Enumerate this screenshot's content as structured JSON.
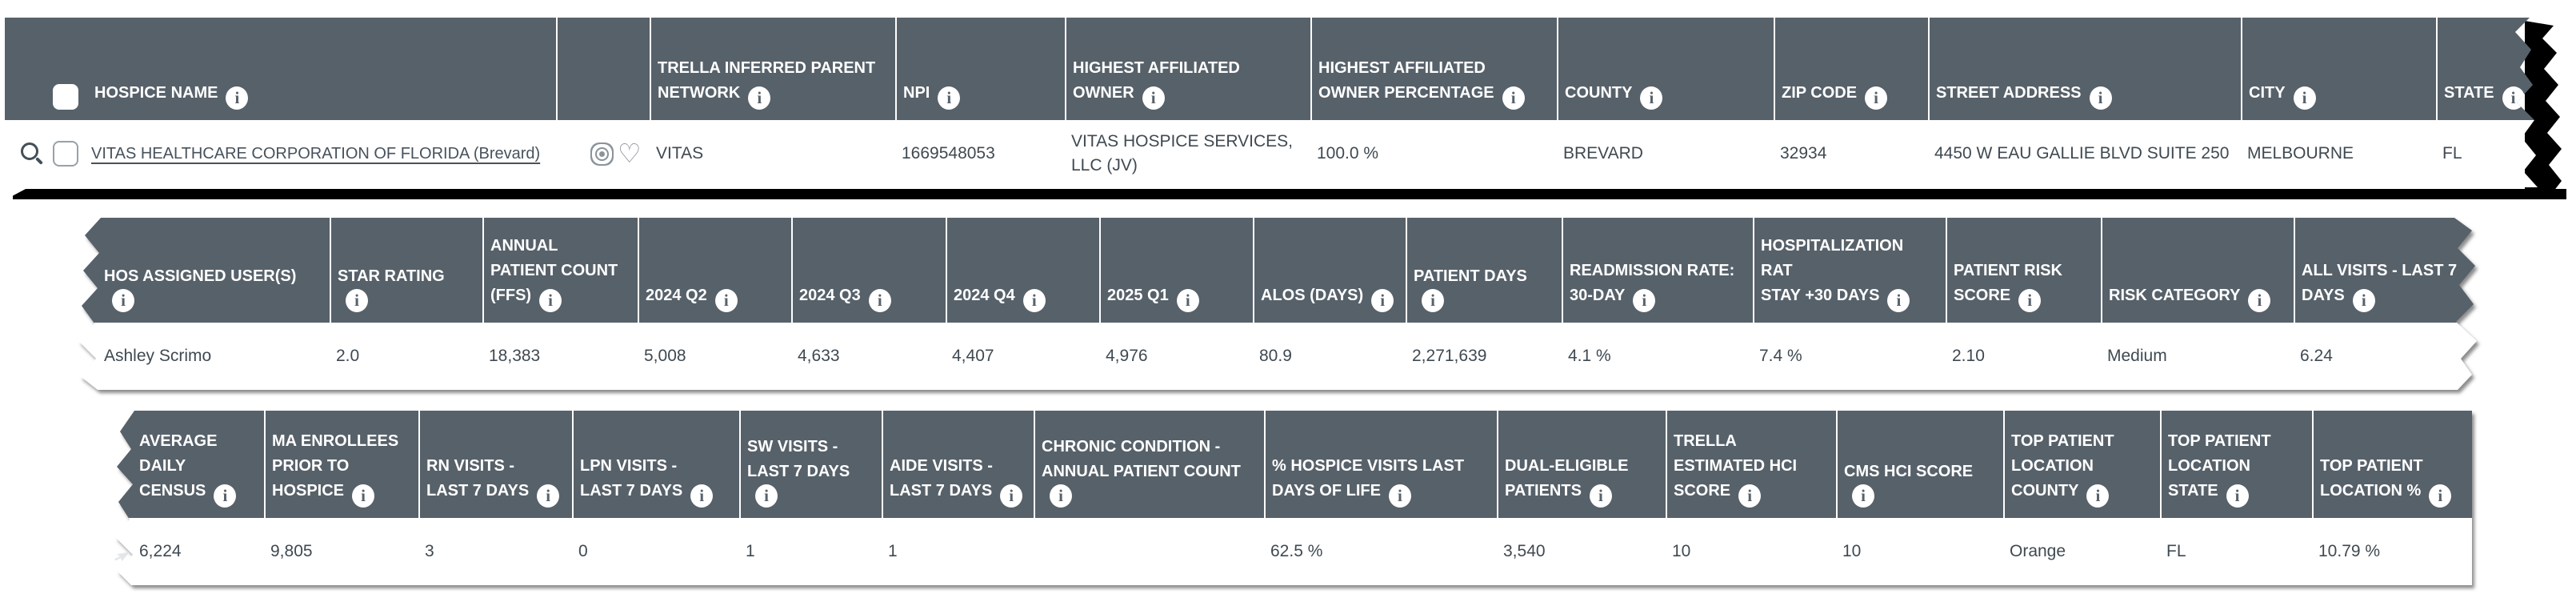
{
  "table": {
    "segments": [
      {
        "columns": [
          {
            "id": "hospice-name",
            "label": "HOSPICE NAME",
            "info": true,
            "type": "link",
            "value": "VITAS HEALTHCARE CORPORATION OF FLORIDA (Brevard)"
          },
          {
            "id": "row-actions",
            "label": "",
            "info": false,
            "type": "icons",
            "value": "",
            "icons": [
              "target-icon",
              "heart-icon"
            ]
          },
          {
            "id": "trella-inferred-parent-network",
            "label": "TRELLA INFERRED PARENT\nNETWORK",
            "info": true,
            "value": "VITAS"
          },
          {
            "id": "npi",
            "label": "NPI",
            "info": true,
            "value": "1669548053"
          },
          {
            "id": "highest-affiliated-owner",
            "label": "HIGHEST AFFILIATED\nOWNER",
            "info": true,
            "value": "VITAS HOSPICE SERVICES,\nLLC (JV)"
          },
          {
            "id": "highest-affiliated-owner-percentage",
            "label": "HIGHEST AFFILIATED\nOWNER PERCENTAGE",
            "info": true,
            "value": "100.0 %"
          },
          {
            "id": "county",
            "label": "COUNTY",
            "info": true,
            "value": "BREVARD"
          },
          {
            "id": "zip-code",
            "label": "ZIP CODE",
            "info": true,
            "value": "32934"
          },
          {
            "id": "street-address",
            "label": "STREET ADDRESS",
            "info": true,
            "value": "4450 W EAU GALLIE BLVD SUITE 250"
          },
          {
            "id": "city",
            "label": "CITY",
            "info": true,
            "value": "MELBOURNE"
          },
          {
            "id": "state",
            "label": "STATE",
            "info": true,
            "value": "FL"
          }
        ]
      },
      {
        "columns": [
          {
            "id": "hos-assigned-users",
            "label": "HOS ASSIGNED USER(S)\n",
            "info": true,
            "value": "Ashley Scrimo"
          },
          {
            "id": "star-rating",
            "label": "STAR RATING\n",
            "info": true,
            "value": "2.0"
          },
          {
            "id": "annual-patient-count-ffs",
            "label": "ANNUAL\nPATIENT COUNT\n(FFS)",
            "info": true,
            "value": "18,383"
          },
          {
            "id": "q2-2024",
            "label": "2024 Q2",
            "info": true,
            "value": "5,008"
          },
          {
            "id": "q3-2024",
            "label": "2024 Q3",
            "info": true,
            "value": "4,633"
          },
          {
            "id": "q4-2024",
            "label": "2024 Q4",
            "info": true,
            "value": "4,407"
          },
          {
            "id": "q1-2025",
            "label": "2025 Q1",
            "info": true,
            "value": "4,976"
          },
          {
            "id": "alos-days",
            "label": "ALOS (DAYS)",
            "info": true,
            "value": "80.9"
          },
          {
            "id": "patient-days",
            "label": "PATIENT DAYS\n",
            "info": true,
            "value": "2,271,639"
          },
          {
            "id": "readmission-rate-30-day",
            "label": "READMISSION RATE:\n30-DAY",
            "info": true,
            "value": "4.1 %"
          },
          {
            "id": "hospitalization-rate-stay-30-days",
            "label": "HOSPITALIZATION RAT\nSTAY +30 DAYS",
            "info": true,
            "value": "7.4 %"
          },
          {
            "id": "patient-risk-score",
            "label": "PATIENT RISK\nSCORE",
            "info": true,
            "value": "2.10"
          },
          {
            "id": "risk-category",
            "label": "RISK CATEGORY",
            "info": true,
            "value": "Medium"
          },
          {
            "id": "all-visits-last-7-days",
            "label": "ALL VISITS - LAST 7\nDAYS",
            "info": true,
            "value": "6.24"
          }
        ]
      },
      {
        "columns": [
          {
            "id": "average-daily-census",
            "label": "AVERAGE\nDAILY\nCENSUS",
            "info": true,
            "value": "6,224"
          },
          {
            "id": "ma-enrollees-prior-to-hospice",
            "label": "MA ENROLLEES\nPRIOR TO\nHOSPICE",
            "info": true,
            "value": "9,805"
          },
          {
            "id": "rn-visits-last-7-days",
            "label": "RN VISITS -\nLAST 7 DAYS",
            "info": true,
            "value": "3"
          },
          {
            "id": "lpn-visits-last-7-days",
            "label": "LPN VISITS -\nLAST 7 DAYS",
            "info": true,
            "value": "0"
          },
          {
            "id": "sw-visits-last-7-days",
            "label": "SW VISITS -\nLAST 7 DAYS",
            "info": true,
            "value": "1"
          },
          {
            "id": "aide-visits-last-7-days",
            "label": "AIDE VISITS -\nLAST 7 DAYS",
            "info": true,
            "value": "1"
          },
          {
            "id": "chronic-condition-annual-patient-count",
            "label": "CHRONIC CONDITION -\nANNUAL PATIENT COUNT\n",
            "info": true,
            "value": ""
          },
          {
            "id": "pct-hospice-visits-last-days-of-life",
            "label": "% HOSPICE VISITS LAST\nDAYS OF LIFE",
            "info": true,
            "value": "62.5 %"
          },
          {
            "id": "dual-eligible-patients",
            "label": "DUAL-ELIGIBLE\nPATIENTS",
            "info": true,
            "value": "3,540"
          },
          {
            "id": "trella-estimated-hci-score",
            "label": "TRELLA\nESTIMATED HCI\nSCORE",
            "info": true,
            "value": "10"
          },
          {
            "id": "cms-hci-score",
            "label": "CMS HCI SCORE\n",
            "info": true,
            "value": "10"
          },
          {
            "id": "top-patient-location-county",
            "label": "TOP PATIENT\nLOCATION\nCOUNTY",
            "info": true,
            "value": "Orange"
          },
          {
            "id": "top-patient-location-state",
            "label": "TOP PATIENT\nLOCATION\nSTATE",
            "info": true,
            "value": "FL"
          },
          {
            "id": "top-patient-location-pct",
            "label": "TOP PATIENT\nLOCATION %",
            "info": true,
            "value": "10.79 %"
          }
        ]
      }
    ]
  },
  "colors": {
    "header_bg": "#57616a",
    "header_text": "#ffffff",
    "body_text": "#3f4951",
    "link_text": "#47525c",
    "muted_icon": "#8a939b",
    "torn_edge": "#000000"
  }
}
